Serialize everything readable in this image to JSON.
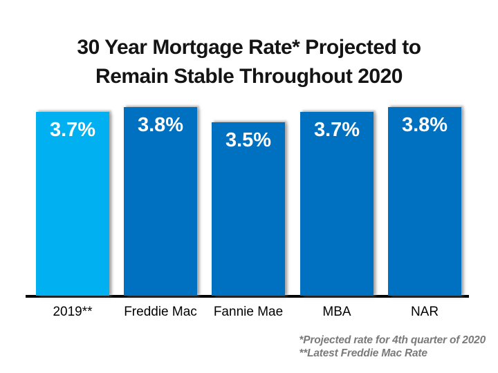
{
  "page": {
    "background_color": "#ffffff"
  },
  "chart_data": {
    "type": "bar",
    "title": "30 Year Mortgage Rate* Projected to Remain Stable Throughout 2020",
    "title_lines": [
      "30 Year Mortgage Rate* Projected to",
      "Remain Stable Throughout 2020"
    ],
    "categories": [
      "2019**",
      "Freddie Mac",
      "Fannie Mae",
      "MBA",
      "NAR"
    ],
    "values": [
      3.7,
      3.8,
      3.5,
      3.7,
      3.8
    ],
    "value_labels": [
      "3.7%",
      "3.8%",
      "3.5%",
      "3.7%",
      "3.8%"
    ],
    "bar_colors": [
      "#00b0f0",
      "#0070c0",
      "#0070c0",
      "#0070c0",
      "#0070c0"
    ],
    "colors": {
      "highlight_bar": "#00b0f0",
      "default_bar": "#0070c0",
      "axis_line": "#000000",
      "title_text": "#141414",
      "value_label_text": "#ffffff",
      "footnote_text": "#7a7a7a"
    },
    "xlabel": "",
    "ylabel": "",
    "ylim": [
      0,
      3.8
    ],
    "grid": false,
    "legend": false,
    "footnotes": [
      "*Projected rate for 4th quarter of 2020",
      "**Latest Freddie Mac Rate"
    ]
  }
}
